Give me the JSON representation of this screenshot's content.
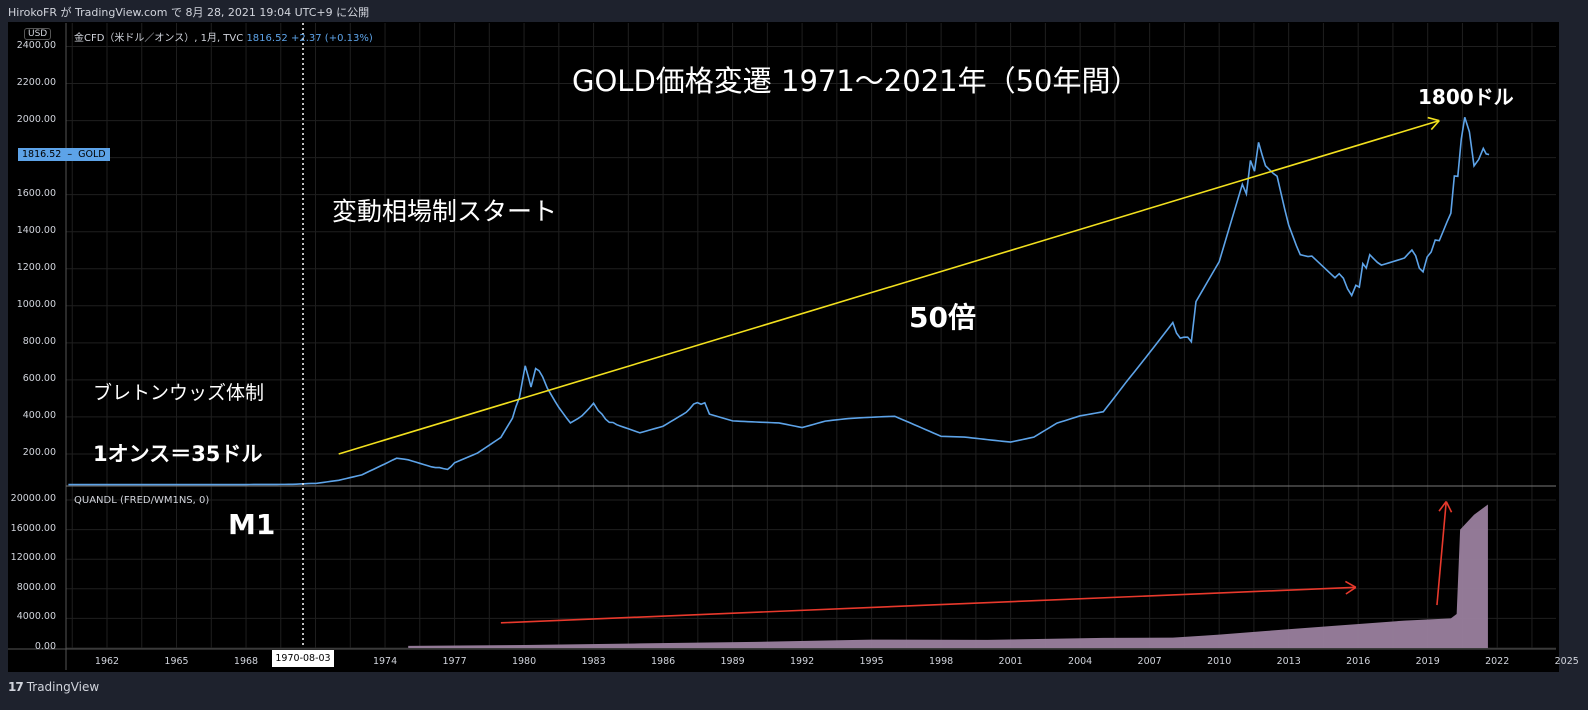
{
  "header": {
    "publish_text": "HirokoFR が TradingView.com で 8月 28, 2021 19:04 UTC+9 に公開"
  },
  "footer": {
    "logo": "17",
    "brand": "TradingView"
  },
  "main_pane": {
    "currency_badge": "USD",
    "legend_symbol": "金CFD（米ドル／オンス）, 1月, TVC",
    "legend_price": "1816.52",
    "legend_change": "+2.37 (+0.13%)",
    "price_tag_value": "1816.52",
    "price_tag_symbol": "GOLD",
    "y_ticks": [
      "2400.00",
      "2200.00",
      "2000.00",
      "1800.00",
      "1600.00",
      "1400.00",
      "1200.00",
      "1000.00",
      "800.00",
      "600.00",
      "400.00",
      "200.00"
    ]
  },
  "sub_pane": {
    "legend": "QUANDL (FRED/WM1NS, 0)",
    "y_ticks": [
      "20000.00",
      "16000.00",
      "12000.00",
      "8000.00",
      "4000.00",
      "0.00"
    ]
  },
  "x_axis": {
    "ticks": [
      "1962",
      "1965",
      "1968",
      "1974",
      "1977",
      "1980",
      "1983",
      "1986",
      "1989",
      "1992",
      "1995",
      "1998",
      "2001",
      "2004",
      "2007",
      "2010",
      "2013",
      "2016",
      "2019",
      "2022",
      "2025"
    ],
    "crosshair_label": "1970-08-03"
  },
  "annotations": {
    "title": "GOLD価格変遷 1971～2021年（50年間）",
    "float_start": "変動相場制スタート",
    "bretton_woods": "ブレトンウッズ体制",
    "peg": "1オンス＝35ドル",
    "multiple": "50倍",
    "target": "1800ドル",
    "m1": "M1"
  },
  "colors": {
    "gold_line": "#5da3e8",
    "m1_area": "#9a7f9e",
    "trend_yellow": "#f2e01e",
    "trend_red": "#e8392c",
    "background": "#000000",
    "frame": "#1e222d"
  },
  "chart_data": [
    {
      "type": "line",
      "title": "金CFD（米ドル／オンス）, 1月, TVC",
      "ylabel": "USD",
      "ylim": [
        0,
        2400
      ],
      "x": [
        1960,
        1968,
        1970,
        1971,
        1972,
        1973,
        1973.5,
        1974,
        1974.5,
        1975,
        1976,
        1976.7,
        1977,
        1978,
        1979,
        1979.5,
        1979.8,
        1980.05,
        1980.3,
        1980.5,
        1980.8,
        1981,
        1981.5,
        1982,
        1982.5,
        1983,
        1983.2,
        1984,
        1985,
        1986,
        1987,
        1987.8,
        1988,
        1989,
        1990,
        1991,
        1992,
        1993,
        1994,
        1995,
        1996,
        1997,
        1998,
        1999,
        2000,
        2001,
        2002,
        2003,
        2004,
        2005,
        2006,
        2007,
        2008,
        2008.8,
        2009,
        2010,
        2011,
        2011.7,
        2012,
        2012.5,
        2013,
        2013.5,
        2014,
        2015,
        2015.9,
        2016.5,
        2017,
        2018,
        2018.8,
        2019.5,
        2020,
        2020.6,
        2021,
        2021.4,
        2021.65
      ],
      "values": [
        35,
        35,
        36,
        42,
        60,
        90,
        120,
        150,
        180,
        170,
        130,
        120,
        150,
        200,
        280,
        380,
        500,
        680,
        560,
        640,
        620,
        540,
        440,
        360,
        400,
        470,
        420,
        360,
        320,
        360,
        440,
        480,
        430,
        390,
        380,
        370,
        340,
        370,
        380,
        385,
        390,
        340,
        290,
        290,
        280,
        270,
        300,
        380,
        420,
        440,
        600,
        750,
        900,
        780,
        1000,
        1200,
        1600,
        1850,
        1700,
        1650,
        1400,
        1250,
        1250,
        1150,
        1080,
        1300,
        1250,
        1300,
        1200,
        1400,
        1550,
        1950,
        1800,
        1850,
        1816.52
      ]
    },
    {
      "type": "area",
      "title": "QUANDL (FRED/WM1NS, 0)",
      "ylim": [
        0,
        20000
      ],
      "x": [
        1975,
        1980,
        1985,
        1990,
        1995,
        2000,
        2005,
        2008,
        2010,
        2012,
        2015,
        2018,
        2020,
        2020.25,
        2020.4,
        2021,
        2021.6
      ],
      "values": [
        280,
        400,
        620,
        820,
        1130,
        1100,
        1360,
        1400,
        1800,
        2300,
        3000,
        3700,
        4000,
        4600,
        16000,
        18000,
        19400
      ]
    },
    {
      "type": "annotation-lines",
      "yellow_trend": {
        "from": [
          1972,
          200
        ],
        "to": [
          2019.5,
          2000
        ]
      },
      "red_trend": {
        "from": [
          1979,
          3400
        ],
        "to": [
          2015.9,
          8200
        ]
      },
      "red_surge": {
        "from": [
          2019.4,
          5800
        ],
        "to": [
          2019.8,
          19800
        ]
      },
      "crosshair_date": "1970-08-03"
    }
  ]
}
